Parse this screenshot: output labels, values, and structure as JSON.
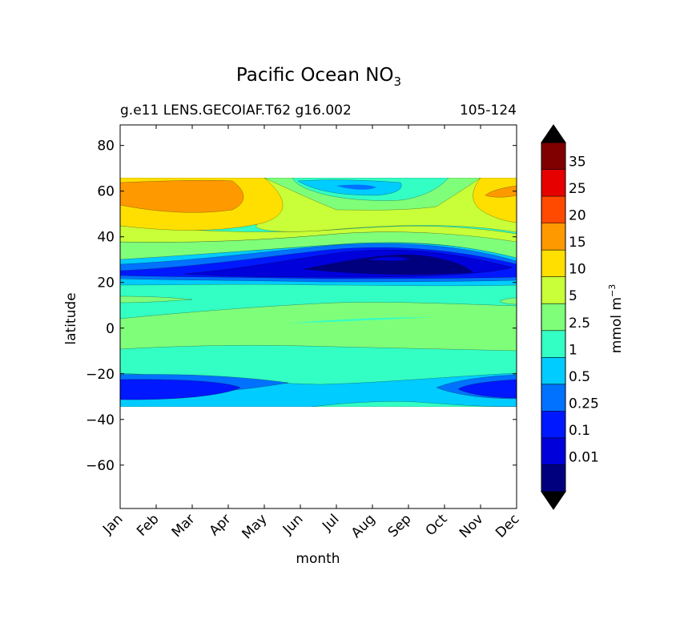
{
  "chart_data": {
    "type": "heatmap",
    "title": "Pacific Ocean NO",
    "title_subscript": "3",
    "subtitle_left": "g.e11 LENS.GECOIAF.T62 g16.002",
    "subtitle_right": "105-124",
    "xlabel": "month",
    "ylabel": "latitude",
    "x": [
      "Jan",
      "Feb",
      "Mar",
      "Apr",
      "May",
      "Jun",
      "Jul",
      "Aug",
      "Sep",
      "Oct",
      "Nov",
      "Dec"
    ],
    "ylim": [
      -79,
      89
    ],
    "yticks": [
      80,
      60,
      40,
      20,
      0,
      -20,
      -40,
      -60
    ],
    "ytick_labels": [
      "80",
      "60",
      "40",
      "20",
      "0",
      "−20",
      "−40",
      "−60"
    ],
    "data_lat_range": [
      -34,
      67
    ],
    "colorbar": {
      "label": "mmol m",
      "label_superscript": "−3",
      "levels": [
        0.01,
        0.1,
        0.25,
        0.5,
        1,
        2.5,
        5,
        10,
        15,
        20,
        25,
        35
      ],
      "labels": [
        "35",
        "25",
        "20",
        "15",
        "10",
        "5",
        "2.5",
        "1",
        "0.5",
        "0.25",
        "0.1",
        "0.01"
      ],
      "colors_top_to_bottom": [
        "#800000",
        "#e60000",
        "#ff4a00",
        "#ff9900",
        "#ffdf00",
        "#c8ff38",
        "#7ffe7a",
        "#33ffc4",
        "#00ccff",
        "#0072ff",
        "#0018ff",
        "#0000db",
        "#00007f"
      ],
      "extend": "both",
      "extend_colors": {
        "over": "#000000",
        "under": "#000000"
      }
    },
    "latitude_bands": [
      {
        "lat_top": 67,
        "lat_bottom": 57,
        "value_class": "15-20 (Jan-Apr), 5-10 (May-Oct), 0.5-1 (Jul-Aug)"
      },
      {
        "lat_top": 57,
        "lat_bottom": 45,
        "value_class": "10-15"
      },
      {
        "lat_top": 45,
        "lat_bottom": 37,
        "value_class": "5-10"
      },
      {
        "lat_top": 37,
        "lat_bottom": 29,
        "value_class": "2.5-5 to 0.25-0.5"
      },
      {
        "lat_top": 29,
        "lat_bottom": 21,
        "value_class": "0.01-0.25 (minimum Jul-Sep)"
      },
      {
        "lat_top": 21,
        "lat_bottom": 5,
        "value_class": "1-2.5"
      },
      {
        "lat_top": 5,
        "lat_bottom": -10,
        "value_class": "2.5-5"
      },
      {
        "lat_top": -10,
        "lat_bottom": -20,
        "value_class": "1-2.5"
      },
      {
        "lat_top": -20,
        "lat_bottom": -34,
        "value_class": "0.1-0.5 (minimum Jan-Apr, Nov-Dec)"
      }
    ]
  }
}
